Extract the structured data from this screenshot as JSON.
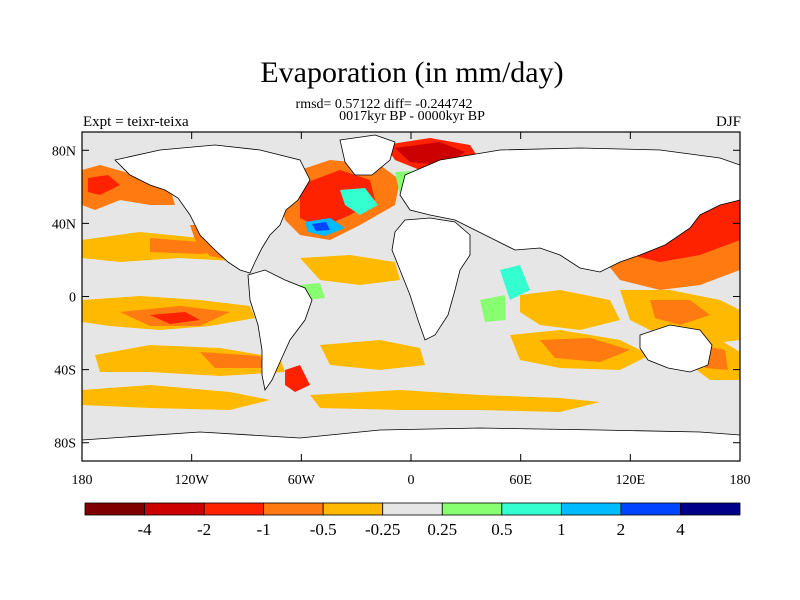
{
  "title": "Evaporation (in mm/day)",
  "stats_line": "rmsd= 0.57122 diff= -0.244742",
  "period_line": "0017kyr BP - 0000kyr BP",
  "left_label": "Expt = teixr-teixa",
  "right_label": "DJF",
  "map": {
    "projection": "cylindrical-equidistant",
    "lon_range": [
      -180,
      180
    ],
    "lat_range": [
      -90,
      90
    ],
    "land_color": "#ffffff",
    "ocean_neutral_color": "#e6e6e6",
    "coastline_color": "#000000",
    "lat_ticks": [
      {
        "value": 80,
        "label": "80N"
      },
      {
        "value": 40,
        "label": "40N"
      },
      {
        "value": 0,
        "label": "0"
      },
      {
        "value": -40,
        "label": "40S"
      },
      {
        "value": -80,
        "label": "80S"
      }
    ],
    "lon_ticks": [
      {
        "value": -180,
        "label": "180"
      },
      {
        "value": -120,
        "label": "120W"
      },
      {
        "value": -60,
        "label": "60W"
      },
      {
        "value": 0,
        "label": "0"
      },
      {
        "value": 60,
        "label": "60E"
      },
      {
        "value": 120,
        "label": "120E"
      },
      {
        "value": 180,
        "label": "180"
      }
    ]
  },
  "colorbar": {
    "colors": [
      "#7f0000",
      "#cc0000",
      "#ff2200",
      "#ff7a11",
      "#ffba00",
      "#e6e6e6",
      "#88ff70",
      "#33ffd0",
      "#00bbff",
      "#0044ff",
      "#000088"
    ],
    "labels": [
      "-4",
      "-2",
      "-1",
      "-0.5",
      "-0.25",
      "0.25",
      "0.5",
      "1",
      "2",
      "4"
    ]
  }
}
